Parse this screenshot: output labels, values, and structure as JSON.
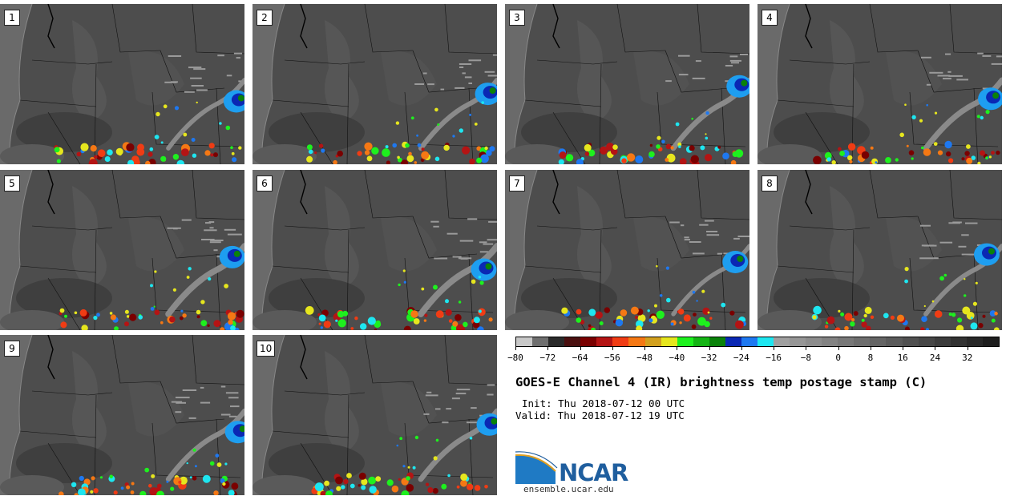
{
  "panels": [
    {
      "label": "1"
    },
    {
      "label": "2"
    },
    {
      "label": "3"
    },
    {
      "label": "4"
    },
    {
      "label": "5"
    },
    {
      "label": "6"
    },
    {
      "label": "7"
    },
    {
      "label": "8"
    },
    {
      "label": "9"
    },
    {
      "label": "10"
    }
  ],
  "chart_data": {
    "type": "heatmap",
    "title": "GOES-E Channel 4 (IR) brightness temp postage stamp (C)",
    "init_line": "Init: Thu 2018-07-12 00 UTC",
    "valid_line": "Valid: Thu 2018-07-12 19 UTC",
    "colorbar": {
      "vmin": -80,
      "vmax": 40,
      "step": 4,
      "tick_labels": [
        "-80",
        "-72",
        "-64",
        "-56",
        "-48",
        "-40",
        "-32",
        "-24",
        "-16",
        "-8",
        "0",
        "8",
        "16",
        "24",
        "32"
      ],
      "colors": [
        "#c8c8c8",
        "#6e6e6e",
        "#2a2a2a",
        "#4a1010",
        "#7a0000",
        "#b41414",
        "#f03c14",
        "#f57814",
        "#d2a01e",
        "#e6e61e",
        "#1ef01e",
        "#14b414",
        "#0a820a",
        "#0a28b4",
        "#1e78f0",
        "#1ee6f0",
        "#a0a0a0",
        "#969696",
        "#8c8c8c",
        "#828282",
        "#787878",
        "#6e6e6e",
        "#646464",
        "#5a5a5a",
        "#505050",
        "#464646",
        "#3c3c3c",
        "#323232",
        "#282828",
        "#1e1e1e"
      ]
    }
  },
  "branding": {
    "logo_text": "NCAR",
    "url": "ensemble.ucar.edu",
    "logo_color": "#1f5e9e"
  }
}
